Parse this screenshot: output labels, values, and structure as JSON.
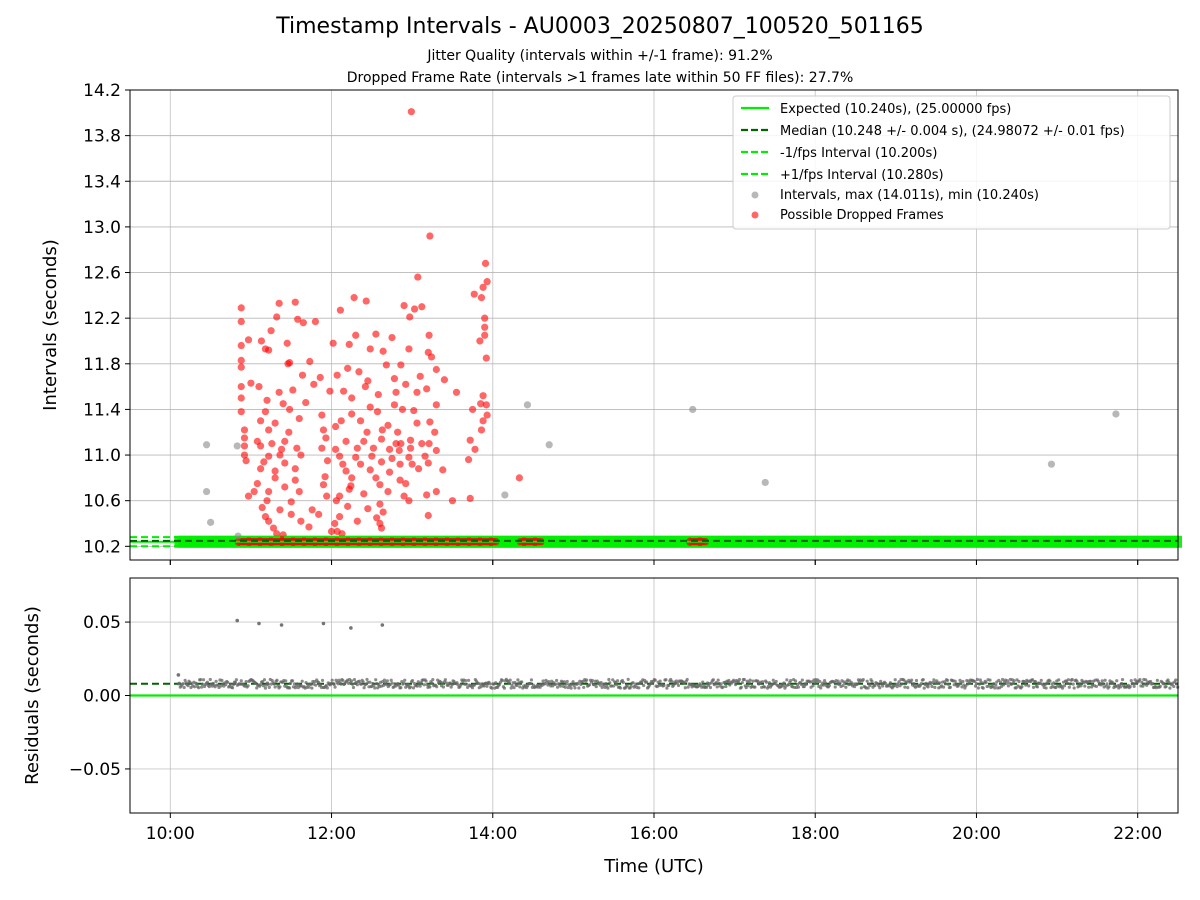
{
  "figure": {
    "title": "Timestamp Intervals - AU0003_20250807_100520_501165",
    "subtitle_1": "Jitter Quality (intervals within +/-1 frame): 91.2%",
    "subtitle_2": "Dropped Frame Rate (intervals >1 frames late within 50 FF files): 27.7%",
    "xlabel": "Time (UTC)"
  },
  "colors": {
    "expected": "#00ee00",
    "median": "#006400",
    "interval_lines": "#00ee00",
    "intervals": "#888888",
    "dropped": "#ff0000",
    "residuals": "#666666"
  },
  "chart_data": [
    {
      "type": "scatter",
      "ylabel": "Intervals (seconds)",
      "x_unit": "hours UTC",
      "xlim": [
        9.5,
        22.5
      ],
      "ylim": [
        10.08,
        14.2
      ],
      "x_ticks": [
        10,
        12,
        14,
        16,
        18,
        20,
        22
      ],
      "y_ticks": [
        10.2,
        10.6,
        11.0,
        11.4,
        11.8,
        12.2,
        12.6,
        13.0,
        13.4,
        13.8,
        14.2
      ],
      "y_tick_labels": [
        "10.2",
        "10.6",
        "11.0",
        "11.4",
        "11.8",
        "12.2",
        "12.6",
        "13.0",
        "13.4",
        "13.8",
        "14.2"
      ],
      "grid": true,
      "legend_position": "upper-right",
      "legend": [
        "Expected (10.240s), (25.00000 fps)",
        "Median (10.248 +/- 0.004 s), (24.98072 +/- 0.01 fps)",
        "-1/fps Interval (10.200s)",
        "+1/fps Interval (10.280s)",
        "Intervals, max (14.011s), min (10.240s)",
        "Possible Dropped Frames"
      ],
      "lines": {
        "expected": 10.24,
        "median": 10.248,
        "minus_1fps": 10.2,
        "plus_1fps": 10.28
      },
      "baseline_band": {
        "y": 10.24,
        "x_start": 10.1,
        "x_end": 22.5,
        "dropped_segments": [
          [
            10.85,
            14.05
          ],
          [
            14.35,
            14.6
          ],
          [
            16.45,
            16.65
          ]
        ]
      },
      "gray_points": [
        [
          10.45,
          11.09
        ],
        [
          10.45,
          10.68
        ],
        [
          10.5,
          10.41
        ],
        [
          10.83,
          11.08
        ],
        [
          10.84,
          10.29
        ],
        [
          14.15,
          10.65
        ],
        [
          14.43,
          11.44
        ],
        [
          14.7,
          11.09
        ],
        [
          16.48,
          11.4
        ],
        [
          17.38,
          10.76
        ],
        [
          20.93,
          10.92
        ],
        [
          21.73,
          11.36
        ]
      ],
      "red_points": [
        [
          12.99,
          14.01
        ],
        [
          13.22,
          12.92
        ],
        [
          13.07,
          12.56
        ],
        [
          13.77,
          12.41
        ],
        [
          13.91,
          12.68
        ],
        [
          13.93,
          12.52
        ],
        [
          13.88,
          12.47
        ],
        [
          13.86,
          12.38
        ],
        [
          12.28,
          12.38
        ],
        [
          12.43,
          12.35
        ],
        [
          11.55,
          12.34
        ],
        [
          10.88,
          12.29
        ],
        [
          11.35,
          12.33
        ],
        [
          12.11,
          12.27
        ],
        [
          12.9,
          12.31
        ],
        [
          13.12,
          12.3
        ],
        [
          13.03,
          12.28
        ],
        [
          10.88,
          12.17
        ],
        [
          11.8,
          12.17
        ],
        [
          13.9,
          12.2
        ],
        [
          11.58,
          12.19
        ],
        [
          11.32,
          12.21
        ],
        [
          12.97,
          12.21
        ],
        [
          13.9,
          12.12
        ],
        [
          11.25,
          12.09
        ],
        [
          13.9,
          12.05
        ],
        [
          11.65,
          12.16
        ],
        [
          10.97,
          12.01
        ],
        [
          11.13,
          12.0
        ],
        [
          11.45,
          11.98
        ],
        [
          12.3,
          12.05
        ],
        [
          12.55,
          12.06
        ],
        [
          12.75,
          12.03
        ],
        [
          13.21,
          12.05
        ],
        [
          13.84,
          12.0
        ],
        [
          10.88,
          11.96
        ],
        [
          11.18,
          11.93
        ],
        [
          11.22,
          11.92
        ],
        [
          12.02,
          11.98
        ],
        [
          12.22,
          11.97
        ],
        [
          12.48,
          11.93
        ],
        [
          12.64,
          11.91
        ],
        [
          12.96,
          11.93
        ],
        [
          13.2,
          11.9
        ],
        [
          13.24,
          11.86
        ],
        [
          13.92,
          11.85
        ],
        [
          10.88,
          11.83
        ],
        [
          11.46,
          11.8
        ],
        [
          11.48,
          11.81
        ],
        [
          11.73,
          11.82
        ],
        [
          12.2,
          11.76
        ],
        [
          12.34,
          11.73
        ],
        [
          12.68,
          11.79
        ],
        [
          12.86,
          11.79
        ],
        [
          13.3,
          11.75
        ],
        [
          10.88,
          11.77
        ],
        [
          11.64,
          11.7
        ],
        [
          11.86,
          11.68
        ],
        [
          12.07,
          11.7
        ],
        [
          12.45,
          11.65
        ],
        [
          12.78,
          11.67
        ],
        [
          13.1,
          11.69
        ],
        [
          13.4,
          11.66
        ],
        [
          11.0,
          11.63
        ],
        [
          11.1,
          11.6
        ],
        [
          11.78,
          11.62
        ],
        [
          12.42,
          11.6
        ],
        [
          12.92,
          11.62
        ],
        [
          13.18,
          11.58
        ],
        [
          10.88,
          11.6
        ],
        [
          11.35,
          11.55
        ],
        [
          11.52,
          11.57
        ],
        [
          11.98,
          11.56
        ],
        [
          12.15,
          11.56
        ],
        [
          12.58,
          11.53
        ],
        [
          12.8,
          11.55
        ],
        [
          13.06,
          11.55
        ],
        [
          13.55,
          11.55
        ],
        [
          13.88,
          11.52
        ],
        [
          10.88,
          11.5
        ],
        [
          11.2,
          11.48
        ],
        [
          11.4,
          11.45
        ],
        [
          11.68,
          11.46
        ],
        [
          12.25,
          11.5
        ],
        [
          12.48,
          11.42
        ],
        [
          12.78,
          11.44
        ],
        [
          13.3,
          11.44
        ],
        [
          13.85,
          11.45
        ],
        [
          13.92,
          11.44
        ],
        [
          10.88,
          11.38
        ],
        [
          11.18,
          11.38
        ],
        [
          11.48,
          11.4
        ],
        [
          11.88,
          11.35
        ],
        [
          12.25,
          11.36
        ],
        [
          12.57,
          11.38
        ],
        [
          12.88,
          11.4
        ],
        [
          13.02,
          11.39
        ],
        [
          13.75,
          11.4
        ],
        [
          13.93,
          11.35
        ],
        [
          11.12,
          11.3
        ],
        [
          11.3,
          11.28
        ],
        [
          11.6,
          11.32
        ],
        [
          12.12,
          11.3
        ],
        [
          12.36,
          11.3
        ],
        [
          12.7,
          11.26
        ],
        [
          13.06,
          11.28
        ],
        [
          13.22,
          11.29
        ],
        [
          13.88,
          11.3
        ],
        [
          10.92,
          11.22
        ],
        [
          11.22,
          11.22
        ],
        [
          11.47,
          11.2
        ],
        [
          11.9,
          11.22
        ],
        [
          12.05,
          11.25
        ],
        [
          12.44,
          11.2
        ],
        [
          12.63,
          11.22
        ],
        [
          12.82,
          11.2
        ],
        [
          13.28,
          11.2
        ],
        [
          13.86,
          11.22
        ],
        [
          10.92,
          11.15
        ],
        [
          11.08,
          11.12
        ],
        [
          11.26,
          11.1
        ],
        [
          11.42,
          11.12
        ],
        [
          11.93,
          11.15
        ],
        [
          12.18,
          11.12
        ],
        [
          12.4,
          11.12
        ],
        [
          12.62,
          11.14
        ],
        [
          12.8,
          11.1
        ],
        [
          12.86,
          11.1
        ],
        [
          12.98,
          11.13
        ],
        [
          13.12,
          11.1
        ],
        [
          13.21,
          11.1
        ],
        [
          13.72,
          11.13
        ],
        [
          10.92,
          11.08
        ],
        [
          11.12,
          11.08
        ],
        [
          11.38,
          11.05
        ],
        [
          11.57,
          11.06
        ],
        [
          11.88,
          11.06
        ],
        [
          12.05,
          11.05
        ],
        [
          12.32,
          11.06
        ],
        [
          12.52,
          11.06
        ],
        [
          12.72,
          11.05
        ],
        [
          12.84,
          11.04
        ],
        [
          12.98,
          11.06
        ],
        [
          13.3,
          11.04
        ],
        [
          13.78,
          11.05
        ],
        [
          10.92,
          11.0
        ],
        [
          11.22,
          10.99
        ],
        [
          11.36,
          11.0
        ],
        [
          11.62,
          11.0
        ],
        [
          12.1,
          10.99
        ],
        [
          12.3,
          10.98
        ],
        [
          12.5,
          10.99
        ],
        [
          12.75,
          10.97
        ],
        [
          12.96,
          10.98
        ],
        [
          13.16,
          10.99
        ],
        [
          13.7,
          10.96
        ],
        [
          10.94,
          10.95
        ],
        [
          11.16,
          10.94
        ],
        [
          11.42,
          10.93
        ],
        [
          11.95,
          10.95
        ],
        [
          12.14,
          10.92
        ],
        [
          12.36,
          10.92
        ],
        [
          12.62,
          10.94
        ],
        [
          12.85,
          10.92
        ],
        [
          13.0,
          10.92
        ],
        [
          13.2,
          10.93
        ],
        [
          11.12,
          10.88
        ],
        [
          11.3,
          10.86
        ],
        [
          11.55,
          10.88
        ],
        [
          12.18,
          10.86
        ],
        [
          12.48,
          10.87
        ],
        [
          12.72,
          10.85
        ],
        [
          13.08,
          10.88
        ],
        [
          13.38,
          10.87
        ],
        [
          11.3,
          10.8
        ],
        [
          11.55,
          10.78
        ],
        [
          11.92,
          10.81
        ],
        [
          12.25,
          10.8
        ],
        [
          12.55,
          10.8
        ],
        [
          12.85,
          10.78
        ],
        [
          14.33,
          10.8
        ],
        [
          11.08,
          10.75
        ],
        [
          11.42,
          10.72
        ],
        [
          11.9,
          10.74
        ],
        [
          12.24,
          10.73
        ],
        [
          12.6,
          10.74
        ],
        [
          12.92,
          10.75
        ],
        [
          11.04,
          10.68
        ],
        [
          11.22,
          10.68
        ],
        [
          11.6,
          10.68
        ],
        [
          12.22,
          10.7
        ],
        [
          12.4,
          10.66
        ],
        [
          12.7,
          10.68
        ],
        [
          13.3,
          10.68
        ],
        [
          10.97,
          10.64
        ],
        [
          11.94,
          10.64
        ],
        [
          12.1,
          10.64
        ],
        [
          12.9,
          10.64
        ],
        [
          13.18,
          10.65
        ],
        [
          11.2,
          10.6
        ],
        [
          11.5,
          10.59
        ],
        [
          12.06,
          10.6
        ],
        [
          12.6,
          10.57
        ],
        [
          12.96,
          10.6
        ],
        [
          13.5,
          10.6
        ],
        [
          13.72,
          10.62
        ],
        [
          11.14,
          10.54
        ],
        [
          11.36,
          10.52
        ],
        [
          11.76,
          10.52
        ],
        [
          12.2,
          10.55
        ],
        [
          12.45,
          10.53
        ],
        [
          12.64,
          10.5
        ],
        [
          11.18,
          10.46
        ],
        [
          11.5,
          10.48
        ],
        [
          11.84,
          10.48
        ],
        [
          12.1,
          10.46
        ],
        [
          12.56,
          10.45
        ],
        [
          13.2,
          10.47
        ],
        [
          11.22,
          10.42
        ],
        [
          11.62,
          10.42
        ],
        [
          12.04,
          10.4
        ],
        [
          12.32,
          10.42
        ],
        [
          12.6,
          10.4
        ],
        [
          11.28,
          10.36
        ],
        [
          11.72,
          10.37
        ],
        [
          12.0,
          10.33
        ],
        [
          12.07,
          10.33
        ],
        [
          12.62,
          10.36
        ],
        [
          11.32,
          10.31
        ],
        [
          11.4,
          10.3
        ],
        [
          12.13,
          10.31
        ]
      ]
    },
    {
      "type": "scatter",
      "ylabel": "Residuals (seconds)",
      "x_unit": "hours UTC",
      "xlim": [
        9.5,
        22.5
      ],
      "ylim": [
        -0.08,
        0.08
      ],
      "x_ticks": [
        10,
        12,
        14,
        16,
        18,
        20,
        22
      ],
      "x_tick_labels": [
        "10:00",
        "12:00",
        "14:00",
        "16:00",
        "18:00",
        "20:00",
        "22:00"
      ],
      "y_ticks": [
        0.05,
        0.0,
        -0.05
      ],
      "y_tick_labels": [
        "0.05",
        "0.00",
        "−0.05"
      ],
      "grid": true,
      "lines": {
        "zero": 0.0,
        "median_residual": 0.008
      },
      "residual_band": {
        "x_start": 10.1,
        "x_end": 22.5,
        "center": 0.008,
        "spread": 0.003
      },
      "outliers": [
        [
          10.1,
          0.014
        ],
        [
          10.83,
          0.051
        ],
        [
          11.1,
          0.049
        ],
        [
          11.38,
          0.048
        ],
        [
          11.9,
          0.049
        ],
        [
          12.24,
          0.046
        ],
        [
          12.63,
          0.048
        ]
      ]
    }
  ]
}
